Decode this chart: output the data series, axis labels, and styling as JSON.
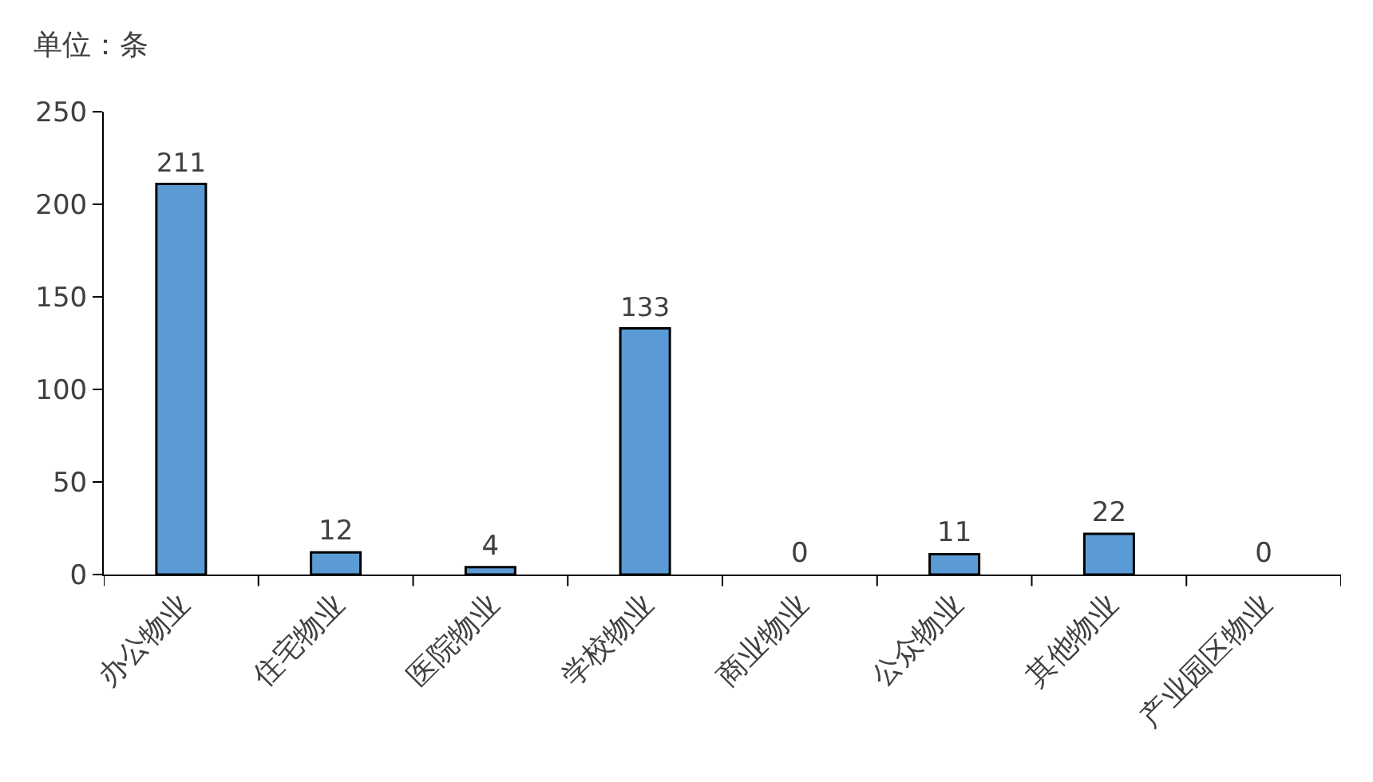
{
  "chart_data": {
    "type": "bar",
    "annotations": [
      "单位：条"
    ],
    "categories": [
      "办公物业",
      "住宅物业",
      "医院物业",
      "学校物业",
      "商业物业",
      "公众物业",
      "其他物业",
      "产业园区物业"
    ],
    "values": [
      211,
      12,
      4,
      133,
      0,
      11,
      22,
      0
    ],
    "color": "#5b9bd5",
    "ylim": [
      0,
      250
    ],
    "yticks": [
      0,
      50,
      100,
      150,
      200,
      250
    ],
    "legend": false,
    "data_labels": true
  }
}
